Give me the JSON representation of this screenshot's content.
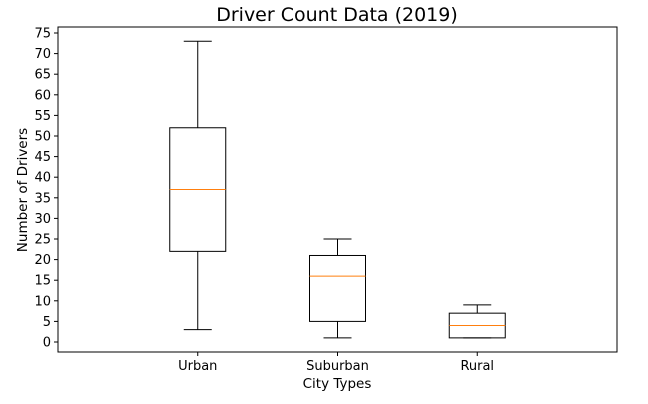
{
  "chart_data": {
    "type": "box",
    "title": "Driver Count Data (2019)",
    "xlabel": "City Types",
    "ylabel": "Number of Drivers",
    "ylim": [
      -2,
      77
    ],
    "yticks": [
      0,
      5,
      10,
      15,
      20,
      25,
      30,
      35,
      40,
      45,
      50,
      55,
      60,
      65,
      70,
      75
    ],
    "categories": [
      "Urban",
      "Suburban",
      "Rural"
    ],
    "boxes": [
      {
        "category": "Urban",
        "min": 3,
        "q1": 22,
        "median": 37,
        "q3": 52,
        "max": 73
      },
      {
        "category": "Suburban",
        "min": 1,
        "q1": 5,
        "median": 16,
        "q3": 21,
        "max": 25
      },
      {
        "category": "Rural",
        "min": 1,
        "q1": 1,
        "median": 4,
        "q3": 7,
        "max": 9
      }
    ],
    "grid": false,
    "colors": {
      "box": "#000000",
      "median": "#ff7f0e"
    }
  }
}
